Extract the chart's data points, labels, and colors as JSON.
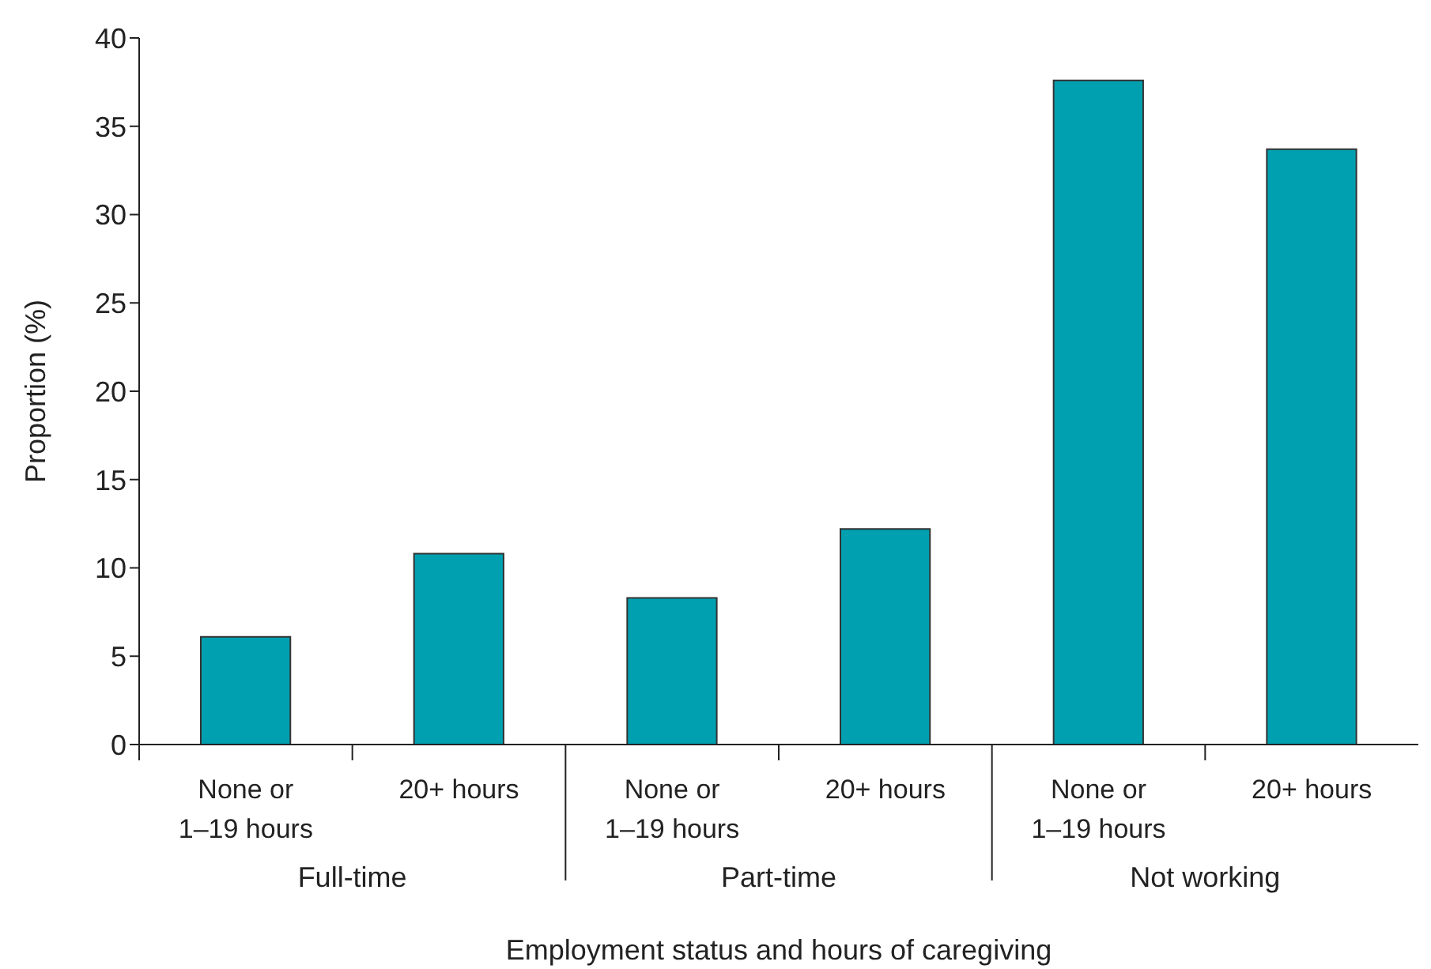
{
  "chart_data": {
    "type": "bar",
    "xlabel": "Employment status and hours of caregiving",
    "ylabel": "Proportion (%)",
    "categories": [
      "None or\n1–19 hours",
      "20+ hours",
      "None or\n1–19 hours",
      "20+ hours",
      "None or\n1–19 hours",
      "20+ hours"
    ],
    "values": [
      6.1,
      10.8,
      8.3,
      12.2,
      37.6,
      33.7
    ],
    "color": "#00a0b0",
    "annotations": [
      "Full-time",
      "Part-time",
      "Not working"
    ],
    "ylim": [
      0,
      40
    ],
    "yticks": [
      0,
      5,
      10,
      15,
      20,
      25,
      30,
      35,
      40
    ],
    "grid": false,
    "legend": false
  }
}
